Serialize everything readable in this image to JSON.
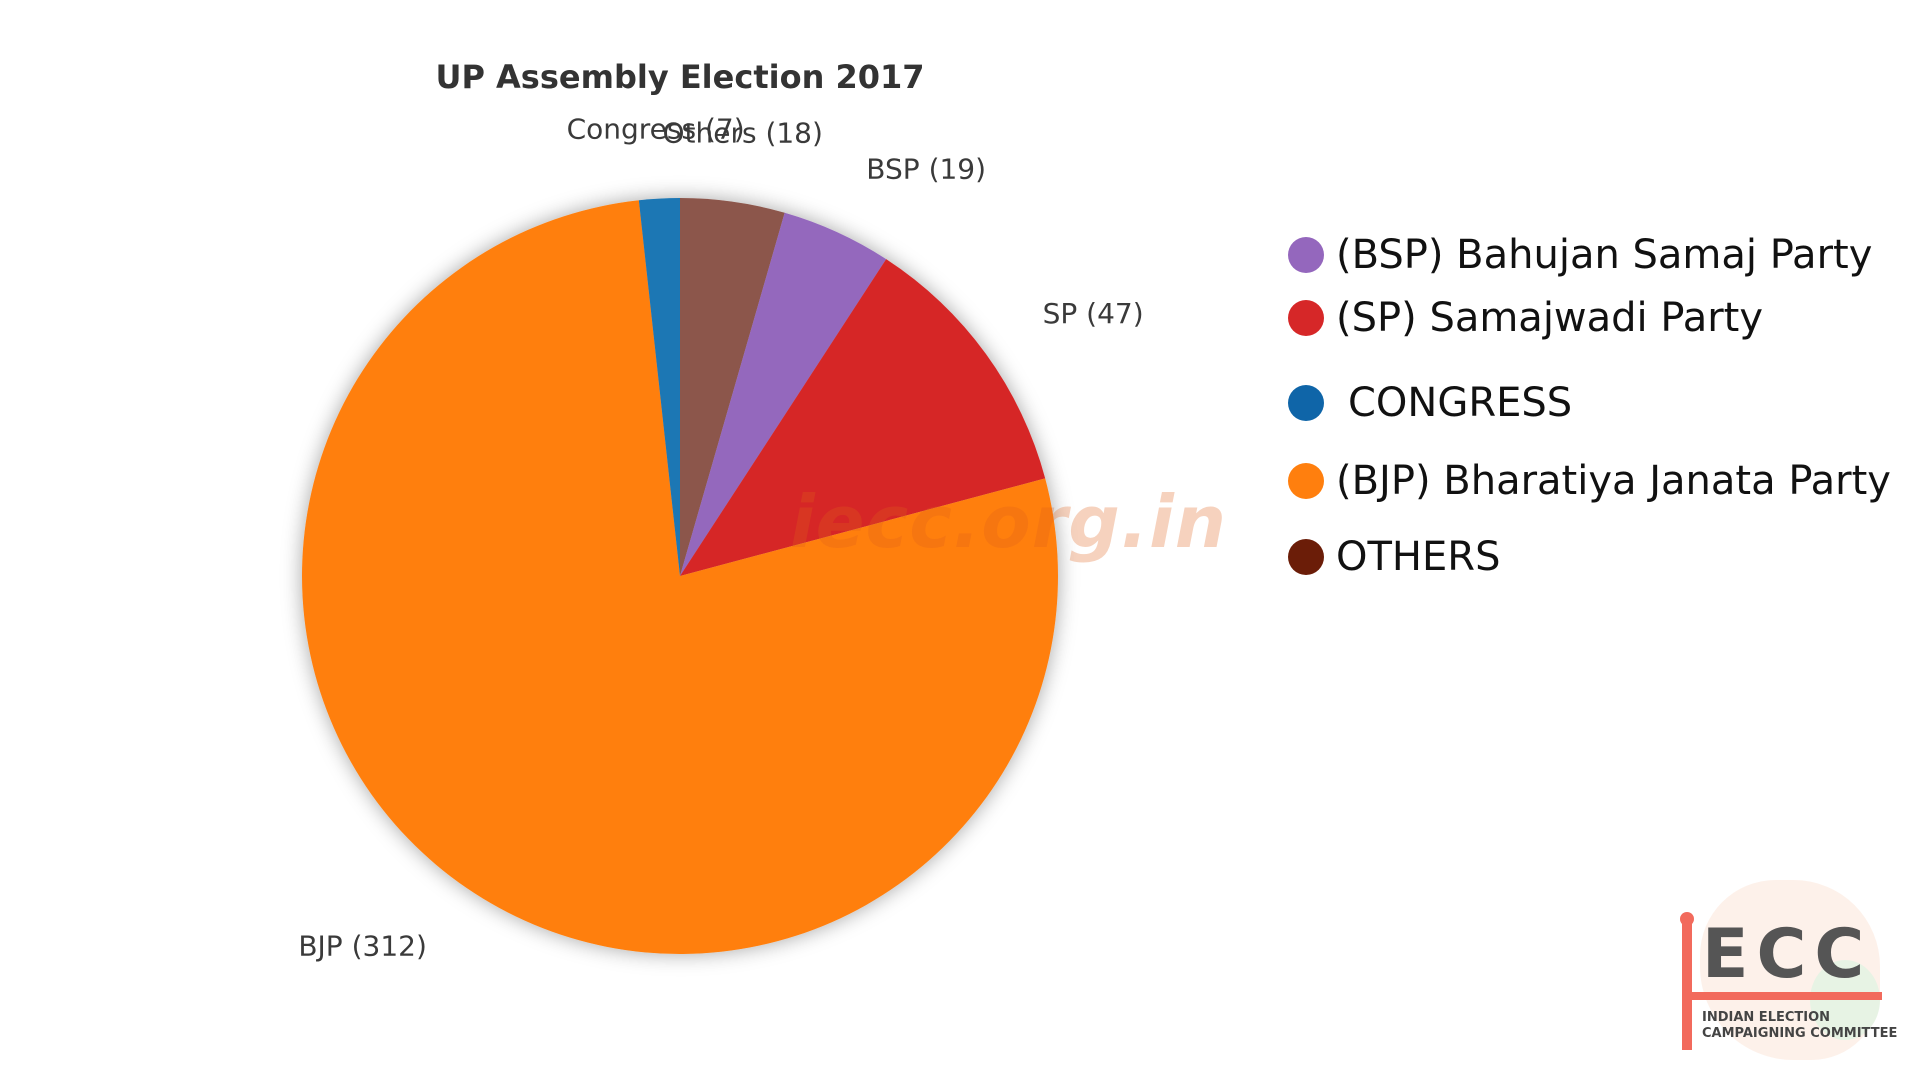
{
  "chart_data": {
    "type": "pie",
    "title": "UP Assembly Election 2017",
    "start_angle_deg": 0,
    "direction": "clockwise",
    "slices": [
      {
        "label": "Others (18)",
        "value": 18,
        "color": "#8c564b"
      },
      {
        "label": "BSP (19)",
        "value": 19,
        "color": "#9467bd"
      },
      {
        "label": "SP (47)",
        "value": 47,
        "color": "#d62728"
      },
      {
        "label": "BJP (312)",
        "value": 312,
        "color": "#ff7f0e"
      },
      {
        "label": "Congress (7)",
        "value": 7,
        "color": "#1f77b4"
      }
    ]
  },
  "legend": [
    {
      "label": "(BSP) Bahujan Samaj Party",
      "color": "#9467bd"
    },
    {
      "label": "(SP) Samajwadi Party",
      "color": "#d62728"
    },
    {
      "label": "CONGRESS",
      "color": "#0f65a8"
    },
    {
      "label": "(BJP) Bharatiya Janata Party",
      "color": "#ff7f0e"
    },
    {
      "label": "OTHERS",
      "color": "#6b1d08"
    }
  ],
  "watermark": "iecc.org.in",
  "logo": {
    "acronym": "ECC",
    "line1": "INDIAN ELECTION",
    "line2": "CAMPAIGNING COMMITTEE"
  }
}
